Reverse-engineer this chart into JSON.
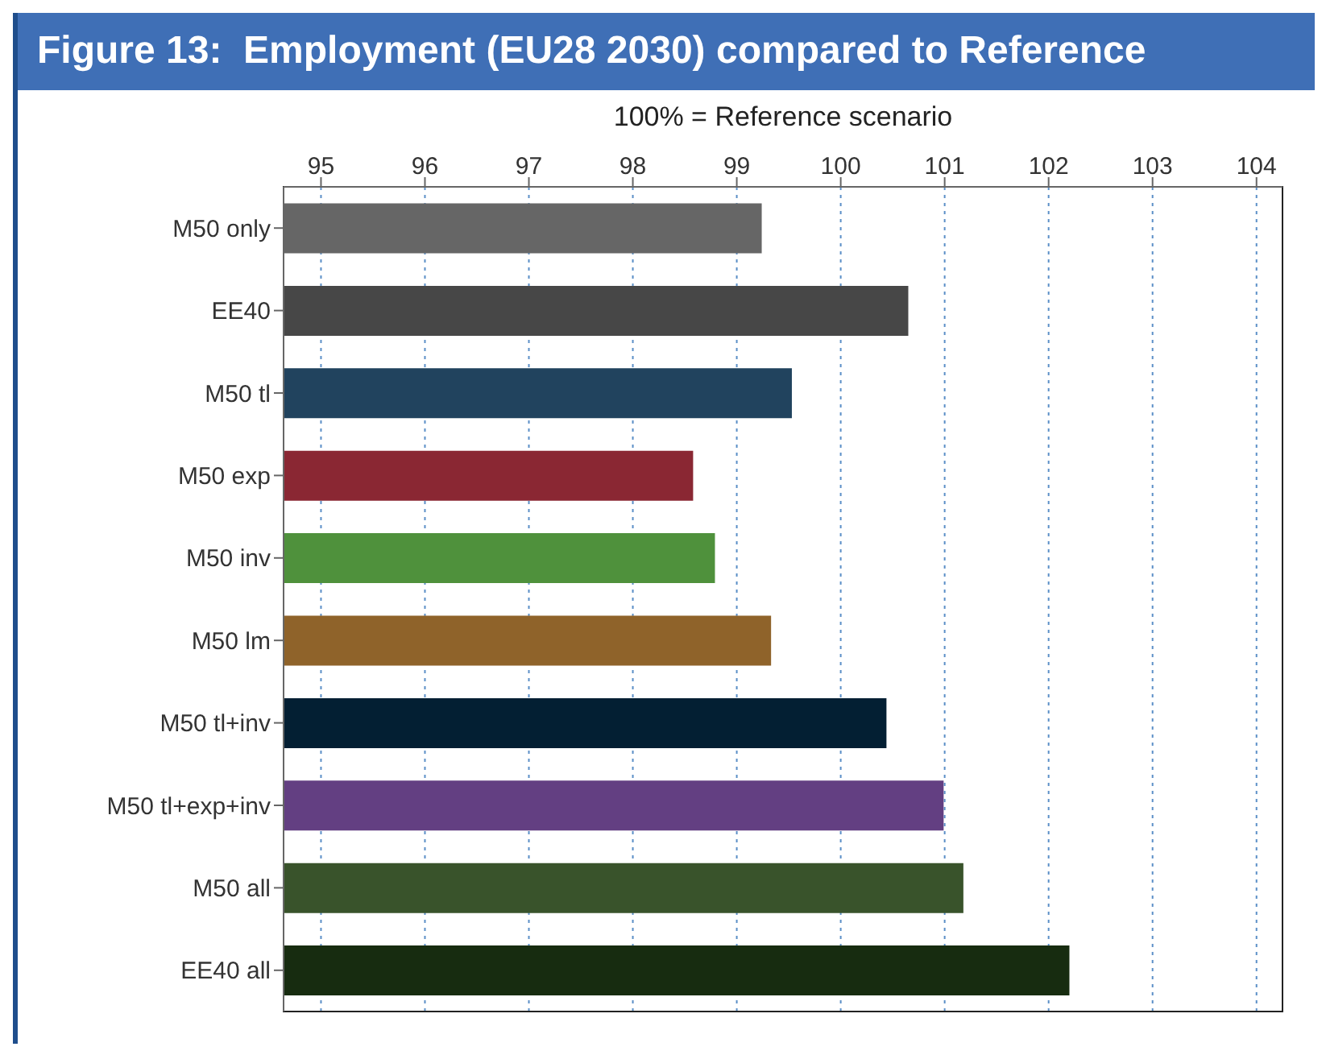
{
  "chart_data": {
    "type": "bar",
    "orientation": "horizontal",
    "title": "Figure 13:  Employment (EU28 2030) compared to Reference",
    "xlabel": "100% = Reference scenario",
    "categories": [
      "M50 only",
      "EE40",
      "M50 tl",
      "M50 exp",
      "M50 inv",
      "M50 lm",
      "M50 tl+inv",
      "M50 tl+exp+inv",
      "M50 all",
      "EE40 all"
    ],
    "values": [
      99.24,
      100.65,
      99.53,
      98.58,
      98.79,
      99.33,
      100.44,
      100.99,
      101.18,
      102.2
    ],
    "colors": [
      "#666666",
      "#474747",
      "#21435e",
      "#8a2733",
      "#4f913c",
      "#8f632a",
      "#031f33",
      "#633f82",
      "#39532b",
      "#172c10"
    ],
    "xlim": [
      94.64,
      104.25
    ],
    "xticks": [
      95,
      96,
      97,
      98,
      99,
      100,
      101,
      102,
      103,
      104
    ],
    "grid": "x"
  }
}
